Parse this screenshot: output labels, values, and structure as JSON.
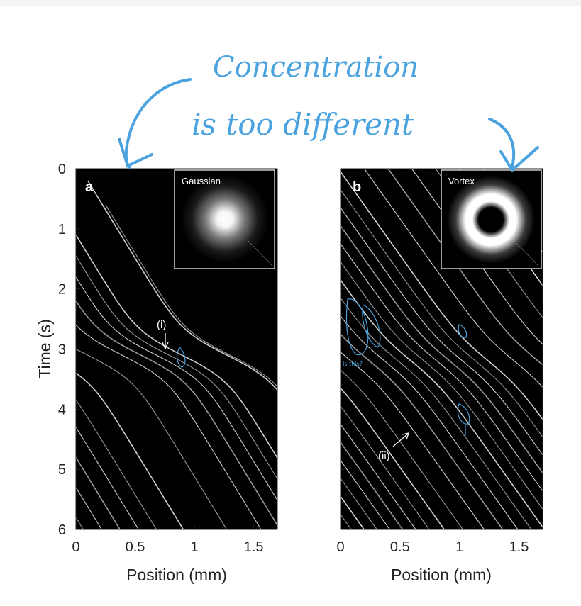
{
  "handwritten_note": {
    "line1": "Concentration",
    "line2": "is too different",
    "scribble_note": "Is this?",
    "color": "#4aa3df"
  },
  "chart_data": [
    {
      "type": "line",
      "panel_label": "a",
      "inset_title": "Gaussian",
      "inset_beam": "gaussian",
      "annotation": "(i)",
      "annotation_point": [
        0.75,
        3.05
      ],
      "xlabel": "Position (mm)",
      "ylabel": "Time (s)",
      "xlim": [
        0,
        1.7
      ],
      "ylim": [
        0,
        6
      ],
      "y_reversed": true,
      "xticks": [
        "0",
        "0.5",
        "1",
        "1.5"
      ],
      "yticks": [
        "0",
        "1",
        "2",
        "3",
        "4",
        "5",
        "6"
      ],
      "background": "#000000",
      "trace_color": "#d9d9d9",
      "trace_model": {
        "slope_mm_per_s": 0.31,
        "trap_position_mm": 0.95,
        "trap_time_s": 3.1,
        "trap_strength_mm": 0.55,
        "trap_width_s": 0.8
      },
      "series": [
        {
          "values": [
            [
              0.0,
              1.1
            ],
            [
              1.7,
              6.0
            ]
          ]
        },
        {
          "values": [
            [
              0.0,
              1.45
            ],
            [
              1.7,
              6.0
            ]
          ]
        },
        {
          "values": [
            [
              0.0,
              1.8
            ],
            [
              1.7,
              6.0
            ]
          ]
        },
        {
          "values": [
            [
              0.0,
              2.2
            ],
            [
              1.7,
              6.0
            ]
          ]
        },
        {
          "values": [
            [
              0.0,
              2.6
            ],
            [
              1.7,
              6.0
            ]
          ]
        },
        {
          "values": [
            [
              0.0,
              3.0
            ],
            [
              1.7,
              6.0
            ]
          ]
        },
        {
          "values": [
            [
              0.0,
              3.4
            ],
            [
              1.7,
              6.0
            ]
          ]
        },
        {
          "values": [
            [
              0.0,
              3.85
            ],
            [
              1.7,
              6.0
            ]
          ]
        },
        {
          "values": [
            [
              0.0,
              4.3
            ],
            [
              1.7,
              6.0
            ]
          ]
        },
        {
          "values": [
            [
              0.0,
              4.8
            ],
            [
              1.7,
              6.0
            ]
          ]
        },
        {
          "values": [
            [
              0.0,
              5.3
            ],
            [
              1.7,
              6.0
            ]
          ]
        },
        {
          "values": [
            [
              0.0,
              5.8
            ],
            [
              1.7,
              6.0
            ]
          ]
        },
        {
          "values": [
            [
              0.1,
              0.2
            ],
            [
              1.7,
              6.0
            ]
          ]
        },
        {
          "values": [
            [
              0.25,
              0.6
            ],
            [
              1.7,
              6.0
            ]
          ]
        }
      ]
    },
    {
      "type": "line",
      "panel_label": "b",
      "inset_title": "Vortex",
      "inset_beam": "vortex",
      "annotation": "(ii)",
      "annotation_point": [
        0.58,
        4.3
      ],
      "xlabel": "Position (mm)",
      "ylabel": "",
      "xlim": [
        0,
        1.7
      ],
      "ylim": [
        0,
        6
      ],
      "y_reversed": true,
      "xticks": [
        "0",
        "0.5",
        "1",
        "1.5"
      ],
      "yticks": [
        "0",
        "1",
        "2",
        "3",
        "4",
        "5",
        "6"
      ],
      "background": "#000000",
      "trace_color": "#dcdcdc",
      "trace_model": {
        "slope_mm_per_s": 0.36,
        "trap_position_mm": 0.9,
        "trap_time_s": 3.2,
        "trap_strength_mm": 0.22,
        "trap_width_s": 0.9
      },
      "series": [
        {
          "values": [
            [
              0.0,
              0.05
            ],
            [
              1.7,
              6.0
            ]
          ]
        },
        {
          "values": [
            [
              0.0,
              0.35
            ],
            [
              1.7,
              6.0
            ]
          ]
        },
        {
          "values": [
            [
              0.0,
              0.65
            ],
            [
              1.7,
              6.0
            ]
          ]
        },
        {
          "values": [
            [
              0.0,
              0.95
            ],
            [
              1.7,
              6.0
            ]
          ]
        },
        {
          "values": [
            [
              0.0,
              1.25
            ],
            [
              1.7,
              6.0
            ]
          ]
        },
        {
          "values": [
            [
              0.0,
              1.55
            ],
            [
              1.7,
              6.0
            ]
          ]
        },
        {
          "values": [
            [
              0.0,
              1.85
            ],
            [
              1.7,
              6.0
            ]
          ]
        },
        {
          "values": [
            [
              0.0,
              2.15
            ],
            [
              1.7,
              6.0
            ]
          ]
        },
        {
          "values": [
            [
              0.0,
              2.45
            ],
            [
              1.7,
              6.0
            ]
          ]
        },
        {
          "values": [
            [
              0.0,
              2.75
            ],
            [
              1.7,
              6.0
            ]
          ]
        },
        {
          "values": [
            [
              0.0,
              3.05
            ],
            [
              1.7,
              6.0
            ]
          ]
        },
        {
          "values": [
            [
              0.0,
              3.35
            ],
            [
              1.7,
              6.0
            ]
          ]
        },
        {
          "values": [
            [
              0.0,
              3.65
            ],
            [
              1.7,
              6.0
            ]
          ]
        },
        {
          "values": [
            [
              0.0,
              3.95
            ],
            [
              1.7,
              6.0
            ]
          ]
        },
        {
          "values": [
            [
              0.0,
              4.25
            ],
            [
              1.7,
              6.0
            ]
          ]
        },
        {
          "values": [
            [
              0.0,
              4.55
            ],
            [
              1.7,
              6.0
            ]
          ]
        },
        {
          "values": [
            [
              0.0,
              4.85
            ],
            [
              1.7,
              6.0
            ]
          ]
        },
        {
          "values": [
            [
              0.0,
              5.15
            ],
            [
              1.7,
              6.0
            ]
          ]
        },
        {
          "values": [
            [
              0.0,
              5.45
            ],
            [
              1.7,
              6.0
            ]
          ]
        },
        {
          "values": [
            [
              0.0,
              5.75
            ],
            [
              1.7,
              6.0
            ]
          ]
        },
        {
          "values": [
            [
              0.2,
              0.0
            ],
            [
              1.7,
              6.0
            ]
          ]
        },
        {
          "values": [
            [
              0.4,
              0.0
            ],
            [
              1.7,
              6.0
            ]
          ]
        },
        {
          "values": [
            [
              0.6,
              0.0
            ],
            [
              1.7,
              6.0
            ]
          ]
        },
        {
          "values": [
            [
              0.8,
              0.0
            ],
            [
              1.7,
              6.0
            ]
          ]
        },
        {
          "values": [
            [
              1.0,
              0.0
            ],
            [
              1.7,
              6.0
            ]
          ]
        },
        {
          "values": [
            [
              1.2,
              0.0
            ],
            [
              1.7,
              6.0
            ]
          ]
        }
      ]
    }
  ]
}
